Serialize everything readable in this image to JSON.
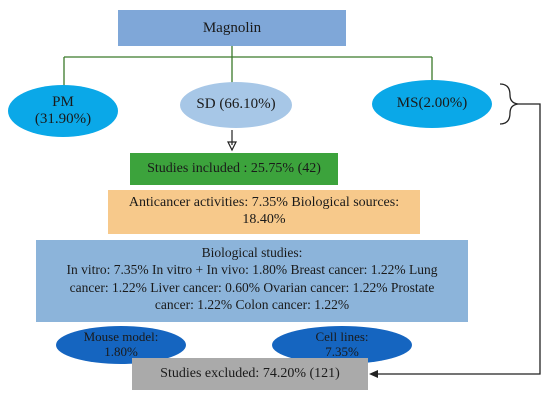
{
  "title": "Magnolin",
  "sources": [
    {
      "line1": "PM",
      "line2": "(31.90%)"
    },
    {
      "line1": "SD (66.10%)"
    },
    {
      "line1": "MS(2.00%)"
    }
  ],
  "included": "Studies included : 25.75% (42)",
  "anticancer": {
    "line1": "Anticancer activities: 7.35% Biological sources:",
    "line2": "18.40%"
  },
  "biological": {
    "title": "Biological studies:",
    "lines": [
      "In vitro: 7.35% In vitro + In vivo: 1.80% Breast cancer: 1.22% Lung",
      "cancer: 1.22% Liver cancer: 0.60%  Ovarian cancer: 1.22% Prostate",
      "cancer: 1.22%  Colon cancer: 1.22%"
    ]
  },
  "mouse": {
    "line1": "Mouse model:",
    "line2": "1.80%"
  },
  "cells": {
    "line1": "Cell lines:",
    "line2": "7.35%"
  },
  "excluded": "Studies excluded: 74.20% (121)"
}
